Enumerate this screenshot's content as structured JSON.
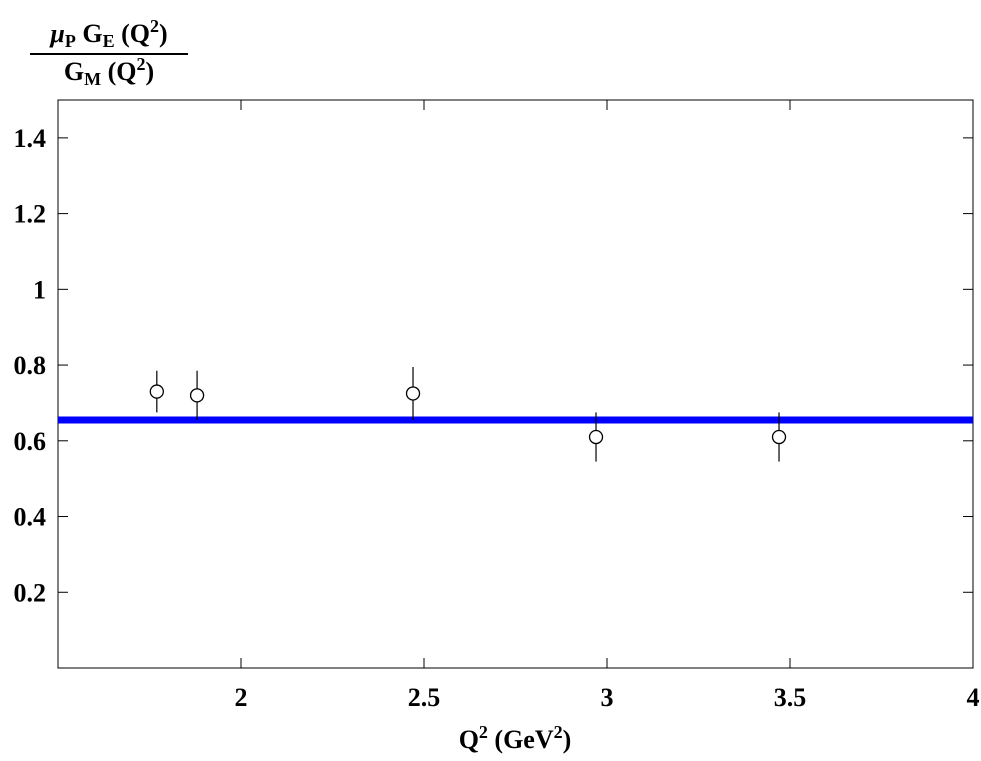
{
  "chart_data": {
    "type": "scatter",
    "ylabel": {
      "numerator": [
        {
          "text": "μ",
          "style": "italic"
        },
        {
          "text": "P",
          "style": "sub"
        },
        {
          "text": " G",
          "style": "normal"
        },
        {
          "text": "E",
          "style": "sub"
        },
        {
          "text": " (Q",
          "style": "normal"
        },
        {
          "text": "2",
          "style": "sup"
        },
        {
          "text": ")",
          "style": "normal"
        }
      ],
      "denominator": [
        {
          "text": "G",
          "style": "normal"
        },
        {
          "text": "M",
          "style": "sub"
        },
        {
          "text": " (Q",
          "style": "normal"
        },
        {
          "text": "2",
          "style": "sup"
        },
        {
          "text": ")",
          "style": "normal"
        }
      ]
    },
    "xlabel": [
      {
        "text": "Q",
        "style": "normal"
      },
      {
        "text": "2",
        "style": "sup"
      },
      {
        "text": " (GeV",
        "style": "normal"
      },
      {
        "text": "2",
        "style": "sup"
      },
      {
        "text": ")",
        "style": "normal"
      }
    ],
    "xlim": [
      1.5,
      4
    ],
    "ylim": [
      0,
      1.5
    ],
    "xticks": [
      2,
      2.5,
      3,
      3.5,
      4
    ],
    "yticks": [
      0.2,
      0.4,
      0.6,
      0.8,
      1,
      1.2,
      1.4
    ],
    "series": [
      {
        "color": "#000000",
        "marker": "open-circle",
        "x": [
          1.77,
          1.88,
          2.47,
          2.97,
          3.47
        ],
        "values": [
          0.73,
          0.72,
          0.725,
          0.61,
          0.61
        ],
        "errors": [
          0.055,
          0.065,
          0.07,
          0.065,
          0.065
        ]
      }
    ],
    "hline": {
      "y": 0.655,
      "color": "#0000ff"
    }
  }
}
